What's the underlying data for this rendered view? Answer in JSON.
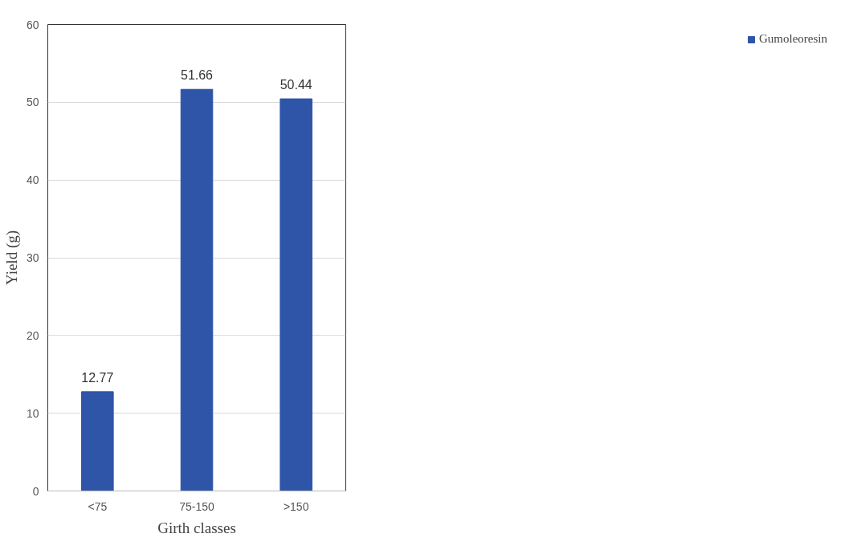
{
  "chart_data": {
    "type": "bar",
    "xlabel": "Girth classes",
    "ylabel": "Yield (g)",
    "categories": [
      "<75",
      "75-150",
      ">150"
    ],
    "series": [
      {
        "name": "Gumoleoresin",
        "color": "#2f55a8",
        "values": [
          12.77,
          51.66,
          50.44
        ]
      }
    ],
    "ylim": [
      0,
      60
    ],
    "yticks": [
      0,
      10,
      20,
      30,
      40,
      50,
      60
    ],
    "grid": "y",
    "legend": "right",
    "data_labels": true
  }
}
